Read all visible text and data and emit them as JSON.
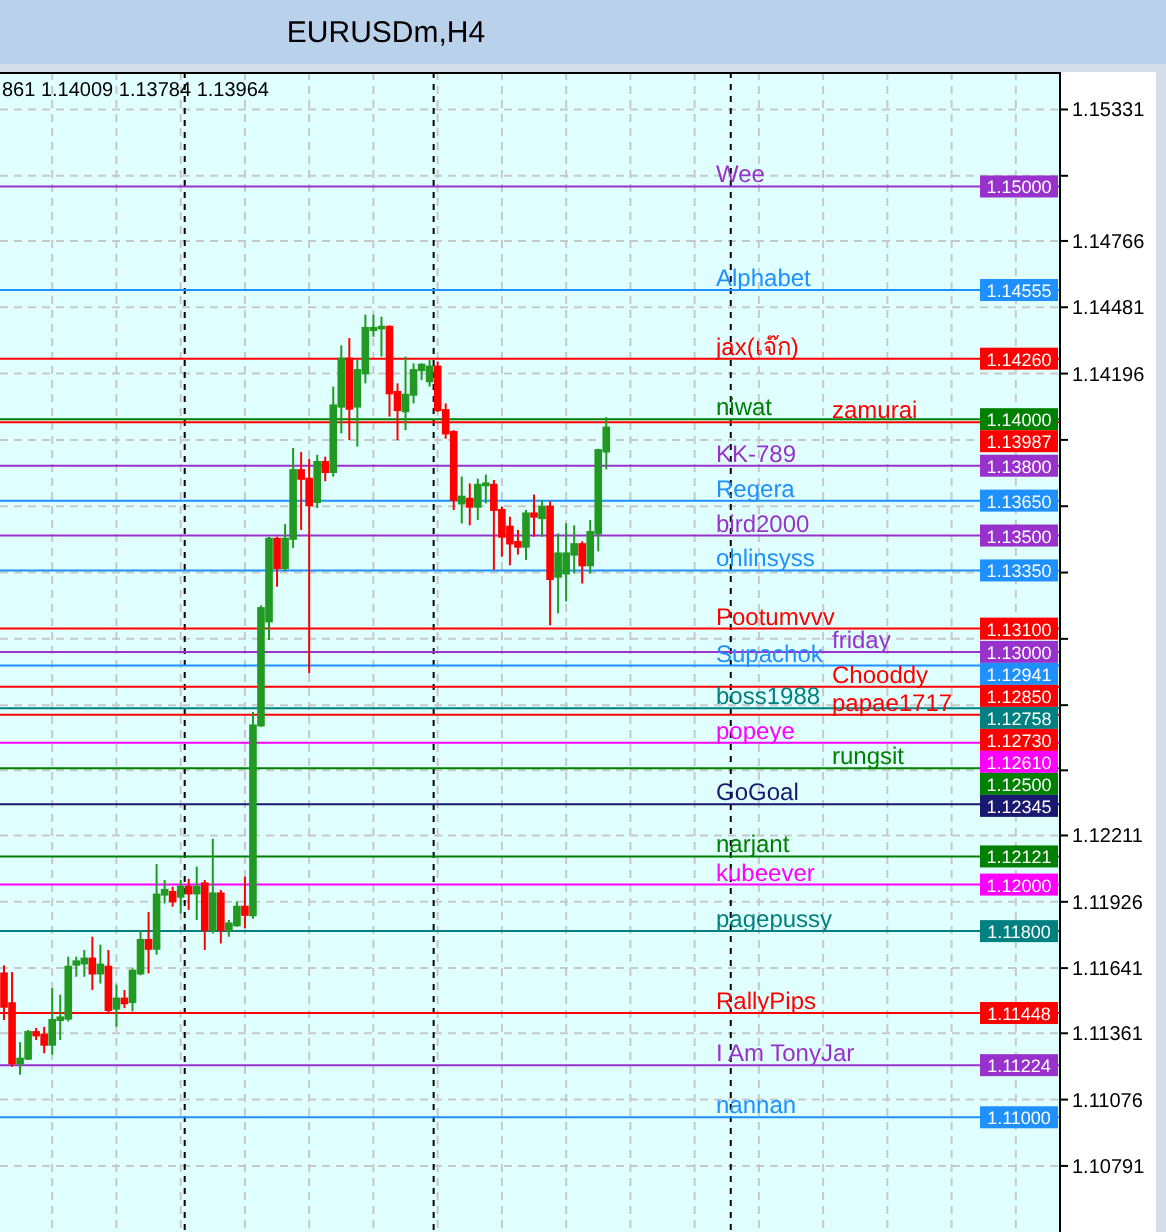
{
  "chart_data": {
    "type": "candlestick",
    "title": "EURUSDm,H4",
    "annotations": [
      "861 1.14009 1.13784 1.13964",
      {
        "text": "1.15000",
        "y": 1.15
      },
      {
        "text": "1.14555",
        "y": 1.14555
      },
      {
        "text": "1.14260",
        "y": 1.1426
      },
      {
        "text": "1.14000",
        "y": 1.14
      },
      {
        "text": "1.13987",
        "y": 1.13987
      },
      {
        "text": "1.13800",
        "y": 1.138
      },
      {
        "text": "1.13650",
        "y": 1.1365
      },
      {
        "text": "1.13500",
        "y": 1.135
      },
      {
        "text": "1.13350",
        "y": 1.1335
      },
      {
        "text": "1.13100",
        "y": 1.131
      },
      {
        "text": "1.13000",
        "y": 1.13
      },
      {
        "text": "1.12941",
        "y": 1.12941
      },
      {
        "text": "1.12850",
        "y": 1.1285
      },
      {
        "text": "1.12758",
        "y": 1.12758
      },
      {
        "text": "1.12730",
        "y": 1.1273
      },
      {
        "text": "1.12610",
        "y": 1.1261
      },
      {
        "text": "1.12500",
        "y": 1.125
      },
      {
        "text": "1.12345",
        "y": 1.12345
      },
      {
        "text": "1.12121",
        "y": 1.12121
      },
      {
        "text": "1.12000",
        "y": 1.12
      },
      {
        "text": "1.11800",
        "y": 1.118
      },
      {
        "text": "1.11448",
        "y": 1.11448
      },
      {
        "text": "1.11224",
        "y": 1.11224
      },
      {
        "text": "1.11000",
        "y": 1.11
      }
    ],
    "categories": [
      null,
      null,
      null,
      null,
      null,
      null,
      null,
      null,
      null,
      null,
      null,
      null,
      null,
      null,
      null,
      null,
      null,
      null,
      null,
      null,
      null,
      null,
      null,
      null,
      null,
      null,
      null,
      null,
      null,
      null,
      null,
      null,
      null,
      null,
      null,
      null,
      null,
      null,
      null,
      null,
      null,
      null,
      null,
      null,
      null,
      null,
      null,
      null,
      null,
      null,
      null,
      null,
      null,
      null,
      null,
      null,
      null,
      null,
      null,
      null,
      null,
      null,
      null,
      null,
      null,
      null,
      null,
      null,
      null,
      null,
      null,
      null,
      null,
      null,
      null,
      null,
      null,
      null,
      null,
      null,
      null,
      null,
      null,
      null,
      null,
      null,
      null,
      null,
      null,
      null,
      null,
      null,
      null,
      null,
      null,
      null,
      null,
      null,
      null,
      null,
      null,
      null,
      null,
      null,
      null,
      null,
      null,
      null,
      null,
      null,
      null,
      null,
      null,
      null,
      null,
      null,
      null,
      null,
      null,
      null,
      null,
      null,
      null,
      null,
      null,
      null,
      null,
      null,
      null,
      null,
      null,
      null
    ],
    "ohlc": [
      [
        1.11618,
        1.11653,
        1.11418,
        1.11475
      ],
      [
        1.1149,
        1.11624,
        1.11217,
        1.11232
      ],
      [
        1.11232,
        1.11323,
        1.11183,
        1.11252
      ],
      [
        1.11252,
        1.11375,
        1.11246,
        1.11366
      ],
      [
        1.11366,
        1.11384,
        1.11332,
        1.11352
      ],
      [
        1.11355,
        1.11389,
        1.11275,
        1.11312
      ],
      [
        1.11312,
        1.11555,
        1.11269,
        1.11418
      ],
      [
        1.11418,
        1.11527,
        1.11332,
        1.11429
      ],
      [
        1.11424,
        1.1169,
        1.11412,
        1.11647
      ],
      [
        1.11656,
        1.1169,
        1.11604,
        1.1167
      ],
      [
        1.11661,
        1.11719,
        1.11604,
        1.11682
      ],
      [
        1.11682,
        1.11776,
        1.11547,
        1.11618
      ],
      [
        1.11618,
        1.11742,
        1.11575,
        1.11656
      ],
      [
        1.11647,
        1.11719,
        1.11447,
        1.11461
      ],
      [
        1.11467,
        1.1157,
        1.11389,
        1.1151
      ],
      [
        1.1151,
        1.11547,
        1.11469,
        1.1149
      ],
      [
        1.11495,
        1.11639,
        1.11455,
        1.1163
      ],
      [
        1.11618,
        1.11805,
        1.1161,
        1.11762
      ],
      [
        1.11762,
        1.11882,
        1.11618,
        1.11724
      ],
      [
        1.11724,
        1.12088,
        1.11699,
        1.11957
      ],
      [
        1.11957,
        1.1202,
        1.11919,
        1.11977
      ],
      [
        1.11968,
        1.11991,
        1.11905,
        1.11928
      ],
      [
        1.11948,
        1.1202,
        1.11876,
        1.11991
      ],
      [
        1.11991,
        1.12025,
        1.11891,
        1.11962
      ],
      [
        1.11962,
        1.12077,
        1.11848,
        1.11991
      ],
      [
        1.12005,
        1.1202,
        1.11719,
        1.11805
      ],
      [
        1.11805,
        1.12197,
        1.1179,
        1.11962
      ],
      [
        1.11962,
        1.11977,
        1.11747,
        1.11805
      ],
      [
        1.11805,
        1.11848,
        1.11776,
        1.11833
      ],
      [
        1.11825,
        1.11928,
        1.11819,
        1.11905
      ],
      [
        1.11905,
        1.12034,
        1.11813,
        1.1187
      ],
      [
        1.11868,
        1.12742,
        1.11853,
        1.12684
      ],
      [
        1.12684,
        1.132,
        1.12678,
        1.13188
      ],
      [
        1.13131,
        1.13495,
        1.13051,
        1.13486
      ],
      [
        1.13486,
        1.13495,
        1.1328,
        1.1336
      ],
      [
        1.1336,
        1.13549,
        1.13346,
        1.13486
      ],
      [
        1.13486,
        1.13876,
        1.13446,
        1.13781
      ],
      [
        1.13781,
        1.13859,
        1.13524,
        1.13744
      ],
      [
        1.13744,
        1.1383,
        1.12908,
        1.1363
      ],
      [
        1.13644,
        1.13847,
        1.13618,
        1.13816
      ],
      [
        1.13816,
        1.13839,
        1.13733,
        1.13773
      ],
      [
        1.13773,
        1.1414,
        1.13753,
        1.14059
      ],
      [
        1.14054,
        1.14317,
        1.13939,
        1.1426
      ],
      [
        1.1426,
        1.14349,
        1.1391,
        1.14045
      ],
      [
        1.14054,
        1.14254,
        1.13882,
        1.14211
      ],
      [
        1.14197,
        1.14449,
        1.14154,
        1.14392
      ],
      [
        1.14383,
        1.14449,
        1.14354,
        1.14392
      ],
      [
        1.14392,
        1.1444,
        1.14269,
        1.14397
      ],
      [
        1.14397,
        1.14403,
        1.14011,
        1.14111
      ],
      [
        1.14117,
        1.14154,
        1.1391,
        1.14039
      ],
      [
        1.14034,
        1.14269,
        1.13953,
        1.14105
      ],
      [
        1.14105,
        1.1424,
        1.14068,
        1.14211
      ],
      [
        1.14211,
        1.1424,
        1.14168,
        1.14234
      ],
      [
        1.14163,
        1.14254,
        1.1414,
        1.14226
      ],
      [
        1.14226,
        1.14248,
        1.14031,
        1.14039
      ],
      [
        1.14039,
        1.14068,
        1.13916,
        1.13939
      ],
      [
        1.13945,
        1.13953,
        1.1361,
        1.13653
      ],
      [
        1.13638,
        1.13753,
        1.13552,
        1.13667
      ],
      [
        1.13658,
        1.13724,
        1.13544,
        1.13624
      ],
      [
        1.13624,
        1.13744,
        1.13567,
        1.13718
      ],
      [
        1.13716,
        1.13762,
        1.13638,
        1.13724
      ],
      [
        1.13718,
        1.13739,
        1.13352,
        1.1361
      ],
      [
        1.1361,
        1.13624,
        1.13409,
        1.13495
      ],
      [
        1.13538,
        1.13581,
        1.13372,
        1.13466
      ],
      [
        1.13472,
        1.13524,
        1.13418,
        1.13452
      ],
      [
        1.13452,
        1.1361,
        1.13395,
        1.13595
      ],
      [
        1.13595,
        1.13676,
        1.13495,
        1.13581
      ],
      [
        1.13575,
        1.13653,
        1.13495,
        1.13624
      ],
      [
        1.13624,
        1.13647,
        1.13114,
        1.13313
      ],
      [
        1.13323,
        1.13509,
        1.13166,
        1.13423
      ],
      [
        1.13337,
        1.13552,
        1.13217,
        1.13423
      ],
      [
        1.13418,
        1.13544,
        1.13337,
        1.13463
      ],
      [
        1.13463,
        1.13475,
        1.13294,
        1.13372
      ],
      [
        1.13372,
        1.13567,
        1.13337,
        1.13515
      ],
      [
        1.13509,
        1.13873,
        1.13432,
        1.13867
      ],
      [
        1.13861,
        1.14009,
        1.13784,
        1.13964
      ],
      null,
      null,
      null,
      null,
      null,
      null,
      null,
      null,
      null,
      null,
      null,
      null,
      null,
      null,
      null,
      null,
      null,
      null,
      null,
      null,
      null,
      null,
      null,
      null,
      null,
      null,
      null,
      null,
      null,
      null,
      null,
      null,
      null,
      null,
      null,
      null,
      null,
      null,
      null,
      null,
      null,
      null,
      null,
      null,
      null,
      null,
      null,
      null,
      null,
      null,
      null,
      null,
      null,
      null,
      null,
      null
    ],
    "colors": [
      "#ff0000",
      "#ff0000",
      "#229922",
      "#229922",
      "#ff0000",
      "#ff0000",
      "#229922",
      "#229922",
      "#229922",
      "#229922",
      "#229922",
      "#ff0000",
      "#229922",
      "#ff0000",
      "#229922",
      "#ff0000",
      "#229922",
      "#229922",
      "#ff0000",
      "#229922",
      "#229922",
      "#ff0000",
      "#229922",
      "#ff0000",
      "#229922",
      "#ff0000",
      "#229922",
      "#ff0000",
      "#229922",
      "#229922",
      "#ff0000",
      "#229922",
      "#229922",
      "#229922",
      "#ff0000",
      "#229922",
      "#229922",
      "#ff0000",
      "#ff0000",
      "#229922",
      "#ff0000",
      "#229922",
      "#229922",
      "#ff0000",
      "#229922",
      "#229922",
      "#229922",
      "#229922",
      "#ff0000",
      "#ff0000",
      "#229922",
      "#229922",
      "#229922",
      "#229922",
      "#ff0000",
      "#ff0000",
      "#ff0000",
      "#229922",
      "#ff0000",
      "#229922",
      "#229922",
      "#ff0000",
      "#ff0000",
      "#ff0000",
      "#ff0000",
      "#229922",
      "#ff0000",
      "#229922",
      "#ff0000",
      "#229922",
      "#229922",
      "#229922",
      "#ff0000",
      "#229922",
      "#229922",
      "#229922",
      null,
      null,
      null,
      null,
      null,
      null,
      null,
      null,
      null,
      null,
      null,
      null,
      null,
      null,
      null,
      null,
      null,
      null,
      null,
      null,
      null,
      null,
      null,
      null,
      null,
      null,
      null,
      null,
      null,
      null,
      null,
      null,
      null,
      null,
      null,
      null,
      null,
      null,
      null,
      null,
      null,
      null,
      null,
      null,
      null,
      null,
      null,
      null,
      null,
      null,
      null,
      null,
      null,
      null,
      null,
      null
    ],
    "ylim": [
      1.10507,
      1.15492
    ],
    "yticks": [
      1.15331,
      {
        "value": 1.15046,
        "label": null
      },
      1.14766,
      1.14481,
      1.14196,
      {
        "value": 1.13911,
        "label": null
      },
      {
        "value": 1.13626,
        "label": null
      },
      {
        "value": 1.13341,
        "label": null
      },
      {
        "value": 1.13056,
        "label": null
      },
      {
        "value": 1.12771,
        "label": null
      },
      {
        "value": 1.12491,
        "label": null
      },
      1.12211,
      1.11926,
      1.11641,
      1.11361,
      1.11076,
      1.10791
    ],
    "grid": true,
    "ref_lines": [
      {
        "axis": "y",
        "value": 1.15,
        "label": "Wee",
        "color": "#9932cc"
      },
      {
        "axis": "y",
        "value": 1.14555,
        "label": "Alphabet",
        "color": "#1e90ff"
      },
      {
        "axis": "y",
        "value": 1.1426,
        "label": "jax(เจ๊ก)",
        "color": "#ff0000"
      },
      {
        "axis": "y",
        "value": 1.14,
        "label": "niwat",
        "color": "#008000"
      },
      {
        "axis": "y",
        "value": 1.13987,
        "label": "zamurai",
        "color": "#ff0000"
      },
      {
        "axis": "y",
        "value": 1.138,
        "label": "KK-789",
        "color": "#9932cc"
      },
      {
        "axis": "y",
        "value": 1.1365,
        "label": "Regera",
        "color": "#1e90ff"
      },
      {
        "axis": "y",
        "value": 1.135,
        "label": "bird2000",
        "color": "#9932cc"
      },
      {
        "axis": "y",
        "value": 1.1335,
        "label": "ohlinsyss",
        "color": "#1e90ff"
      },
      {
        "axis": "y",
        "value": 1.131,
        "label": "Pootumvvv",
        "color": "#ff0000"
      },
      {
        "axis": "y",
        "value": 1.13,
        "label": "friday",
        "color": "#9932cc"
      },
      {
        "axis": "y",
        "value": 1.12941,
        "label": "Supachok",
        "color": "#1e90ff"
      },
      {
        "axis": "y",
        "value": 1.1285,
        "label": "Chooddy",
        "color": "#ff0000"
      },
      {
        "axis": "y",
        "value": 1.12758,
        "label": "boss1988",
        "color": "#008080"
      },
      {
        "axis": "y",
        "value": 1.1273,
        "label": "papae1717",
        "color": "#ff0000"
      },
      {
        "axis": "y",
        "value": 1.1261,
        "label": "popeye",
        "color": "#ff00ff"
      },
      {
        "axis": "y",
        "value": 1.125,
        "label": "rungsit",
        "color": "#008000"
      },
      {
        "axis": "y",
        "value": 1.12345,
        "label": "GoGoal",
        "color": "#191970"
      },
      {
        "axis": "y",
        "value": 1.12121,
        "label": "narjant",
        "color": "#008000"
      },
      {
        "axis": "y",
        "value": 1.12,
        "label": "kubeever",
        "color": "#ff00ff"
      },
      {
        "axis": "y",
        "value": 1.118,
        "label": "pagepussy",
        "color": "#008080"
      },
      {
        "axis": "y",
        "value": 1.11448,
        "label": "RallyPips",
        "color": "#ff0000"
      },
      {
        "axis": "y",
        "value": 1.11224,
        "label": "I Am TonyJar",
        "color": "#9932cc"
      },
      {
        "axis": "y",
        "value": 1.11,
        "label": "nannan",
        "color": "#1e90ff"
      }
    ]
  }
}
